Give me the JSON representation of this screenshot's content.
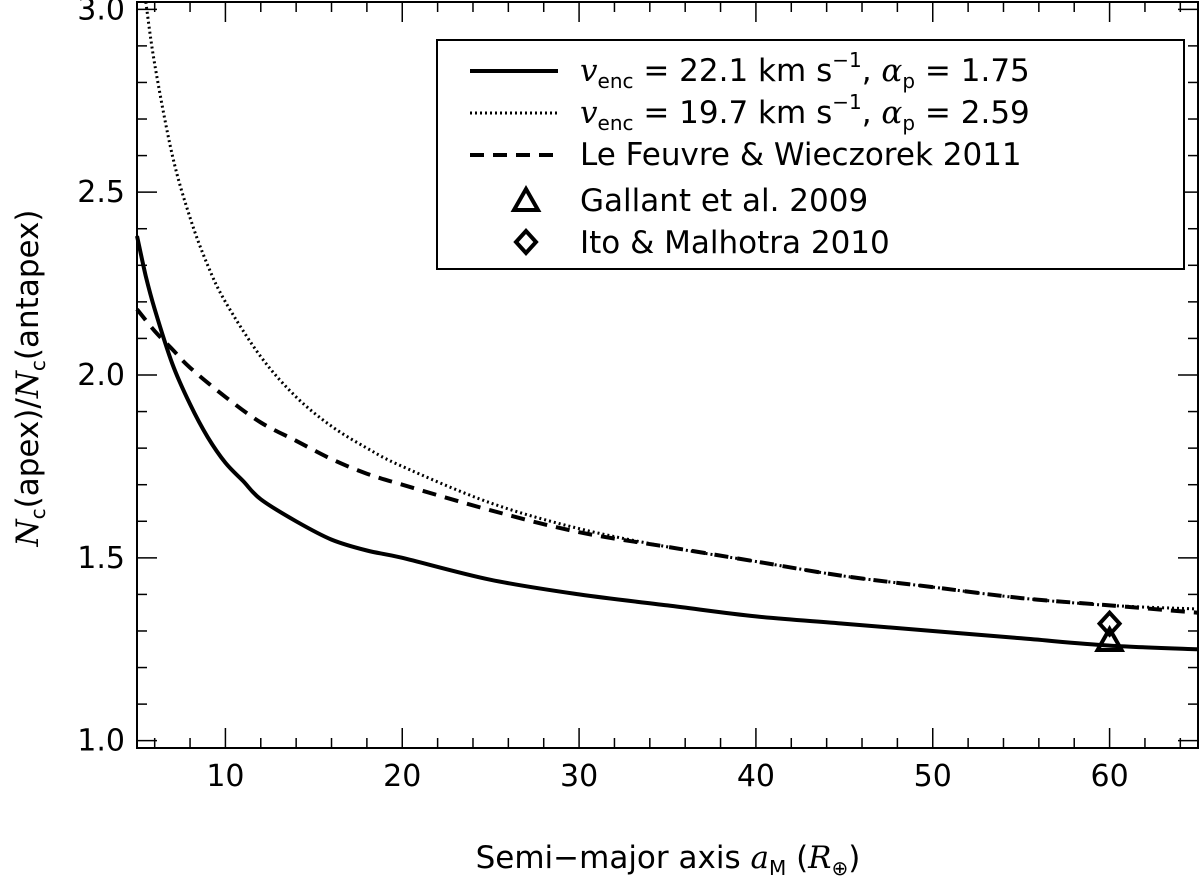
{
  "chart_data": {
    "type": "line",
    "xlabel": {
      "prefix": "Semi−major axis ",
      "symbol": "a",
      "symbol_sub": "M",
      "unit_open": " (",
      "unit_symbol": "R",
      "unit_sub": "⊕",
      "unit_close": ")"
    },
    "ylabel": {
      "num_symbol": "N",
      "num_sub": "c",
      "num_arg": "(apex)/",
      "den_symbol": "N",
      "den_sub": "c",
      "den_arg": "(antapex)"
    },
    "xlim": [
      5,
      65
    ],
    "ylim": [
      0.98,
      3.02
    ],
    "x_ticks": [
      10,
      20,
      30,
      40,
      50,
      60
    ],
    "x_tick_labels": [
      "10",
      "20",
      "30",
      "40",
      "50",
      "60"
    ],
    "x_minor_step": 2,
    "y_ticks": [
      1.0,
      1.5,
      2.0,
      2.5,
      3.0
    ],
    "y_tick_labels": [
      "1.0",
      "1.5",
      "2.0",
      "2.5",
      "3.0"
    ],
    "y_minor_step": 0.1,
    "grid": false,
    "legend_position": "top-right",
    "series": [
      {
        "style": "solid",
        "legend": {
          "symbol": "v",
          "symbol_sub": "enc",
          "mid": " = 22.1 km s",
          "sup": "−1",
          "mid2": ", ",
          "symbol2": "α",
          "symbol2_sub": "p",
          "end": " = 1.75"
        },
        "x": [
          5,
          5.5,
          6,
          7,
          8,
          9,
          10,
          11,
          12,
          14,
          16,
          18,
          20,
          25,
          30,
          35,
          40,
          45,
          50,
          55,
          60,
          65
        ],
        "y": [
          2.38,
          2.27,
          2.18,
          2.03,
          1.92,
          1.83,
          1.76,
          1.71,
          1.66,
          1.6,
          1.55,
          1.52,
          1.5,
          1.44,
          1.4,
          1.37,
          1.34,
          1.32,
          1.3,
          1.28,
          1.26,
          1.25
        ]
      },
      {
        "style": "dotted",
        "legend": {
          "symbol": "v",
          "symbol_sub": "enc",
          "mid": " = 19.7 km s",
          "sup": "−1",
          "mid2": ", ",
          "symbol2": "α",
          "symbol2_sub": "p",
          "end": " = 2.59"
        },
        "x": [
          5.5,
          6,
          7,
          8,
          9,
          10,
          12,
          14,
          16,
          18,
          20,
          25,
          30,
          35,
          40,
          45,
          50,
          55,
          60,
          65
        ],
        "y": [
          3.02,
          2.85,
          2.6,
          2.43,
          2.3,
          2.2,
          2.05,
          1.94,
          1.86,
          1.8,
          1.75,
          1.65,
          1.58,
          1.53,
          1.49,
          1.45,
          1.42,
          1.39,
          1.37,
          1.36
        ]
      },
      {
        "style": "dashed",
        "legend": {
          "text": "Le Feuvre & Wieczorek 2011"
        },
        "x": [
          5,
          6,
          7,
          8,
          10,
          12,
          14,
          16,
          18,
          20,
          25,
          30,
          35,
          40,
          45,
          50,
          55,
          60,
          65
        ],
        "y": [
          2.18,
          2.12,
          2.07,
          2.02,
          1.94,
          1.87,
          1.82,
          1.77,
          1.73,
          1.7,
          1.63,
          1.57,
          1.53,
          1.49,
          1.45,
          1.42,
          1.39,
          1.37,
          1.35
        ]
      }
    ],
    "points": [
      {
        "marker": "triangle",
        "legend": "Gallant et al. 2009",
        "x": 60,
        "y": 1.27
      },
      {
        "marker": "diamond",
        "legend": "Ito & Malhotra 2010",
        "x": 60,
        "y": 1.32
      }
    ]
  }
}
